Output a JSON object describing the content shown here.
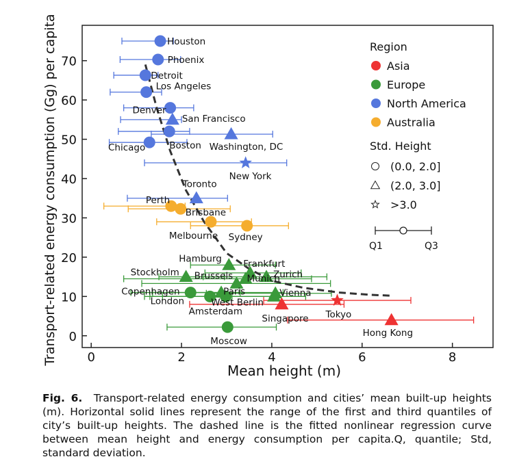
{
  "chart_data": {
    "type": "scatter",
    "xlabel": "Mean height (m)",
    "ylabel": "Transport-related energy consumption (Gg) per capita",
    "xlim": [
      -0.2,
      8.9
    ],
    "ylim": [
      -3,
      79
    ],
    "xticks": [
      "0",
      "2",
      "4",
      "6",
      "8"
    ],
    "yticks": [
      "0",
      "10",
      "20",
      "30",
      "40",
      "50",
      "60",
      "70"
    ],
    "xtick_values": [
      0,
      2,
      4,
      6,
      8
    ],
    "ytick_values": [
      0,
      10,
      20,
      30,
      40,
      50,
      60,
      70
    ],
    "grid": false,
    "legend_placement": "top-right",
    "legend": {
      "region_title": "Region",
      "regions": [
        {
          "name": "Asia",
          "color": "#ee3333"
        },
        {
          "name": "Europe",
          "color": "#3a9a3a"
        },
        {
          "name": "North America",
          "color": "#5577dd"
        },
        {
          "name": "Australia",
          "color": "#f5ad2e"
        }
      ],
      "std_title": "Std. Height",
      "std_items": [
        {
          "shape": "circle",
          "label": "(0.0, 2.0]"
        },
        {
          "shape": "triangle",
          "label": "(2.0, 3.0]"
        },
        {
          "shape": "star",
          "label": ">3.0"
        }
      ],
      "range_labels": [
        "Q1",
        "Q3"
      ]
    },
    "fit_curve": [
      [
        1.2,
        69
      ],
      [
        1.45,
        58
      ],
      [
        1.75,
        47
      ],
      [
        2.1,
        37
      ],
      [
        2.5,
        29
      ],
      [
        3.0,
        21
      ],
      [
        3.5,
        17
      ],
      [
        4.0,
        14
      ],
      [
        4.7,
        12.2
      ],
      [
        5.5,
        11
      ],
      [
        6.2,
        10.4
      ],
      [
        6.65,
        10.2
      ]
    ],
    "points": [
      {
        "city": "Houston",
        "region": "North America",
        "shape": "circle",
        "x": 1.53,
        "y": 75.0,
        "q1": 0.68,
        "q3": 1.82
      },
      {
        "city": "Phoenix",
        "region": "North America",
        "shape": "circle",
        "x": 1.48,
        "y": 70.3,
        "q1": 0.64,
        "q3": 1.98
      },
      {
        "city": "Detroit",
        "region": "North America",
        "shape": "circle",
        "x": 1.2,
        "y": 66.3,
        "q1": 0.5,
        "q3": 1.48
      },
      {
        "city": "Los Angeles",
        "region": "North America",
        "shape": "circle",
        "x": 1.22,
        "y": 62.0,
        "q1": 0.42,
        "q3": 1.56
      },
      {
        "city": "Denver",
        "region": "North America",
        "shape": "circle",
        "x": 1.75,
        "y": 58.0,
        "q1": 0.72,
        "q3": 2.27
      },
      {
        "city": "San Francisco",
        "region": "North America",
        "shape": "triangle",
        "x": 1.8,
        "y": 55.0,
        "q1": 0.65,
        "q3": 2.0
      },
      {
        "city": "Boston",
        "region": "North America",
        "shape": "circle",
        "x": 1.73,
        "y": 52.0,
        "q1": 0.6,
        "q3": 2.18
      },
      {
        "city": "Washington, DC",
        "region": "North America",
        "shape": "triangle",
        "x": 3.1,
        "y": 51.3,
        "q1": 1.33,
        "q3": 4.02
      },
      {
        "city": "Chicago",
        "region": "North America",
        "shape": "circle",
        "x": 1.29,
        "y": 49.2,
        "q1": 0.4,
        "q3": 2.12
      },
      {
        "city": "New York",
        "region": "North America",
        "shape": "star",
        "x": 3.42,
        "y": 44.0,
        "q1": 1.18,
        "q3": 4.33
      },
      {
        "city": "Toronto",
        "region": "North America",
        "shape": "triangle",
        "x": 2.33,
        "y": 35.0,
        "q1": 0.8,
        "q3": 3.02
      },
      {
        "city": "Perth",
        "region": "Australia",
        "shape": "circle",
        "x": 1.77,
        "y": 33.0,
        "q1": 0.28,
        "q3": 2.08
      },
      {
        "city": "Brisbane",
        "region": "Australia",
        "shape": "circle",
        "x": 1.98,
        "y": 32.3,
        "q1": 0.82,
        "q3": 3.08
      },
      {
        "city": "Melbourne",
        "region": "Australia",
        "shape": "circle",
        "x": 2.65,
        "y": 29.0,
        "q1": 1.45,
        "q3": 3.55
      },
      {
        "city": "Sydney",
        "region": "Australia",
        "shape": "circle",
        "x": 3.45,
        "y": 28.0,
        "q1": 2.2,
        "q3": 4.37
      },
      {
        "city": "Hamburg",
        "region": "Europe",
        "shape": "triangle",
        "x": 3.05,
        "y": 18.0,
        "q1": 2.2,
        "q3": 4.08
      },
      {
        "city": "Frankfurt",
        "region": "Europe",
        "shape": "triangle",
        "x": 3.52,
        "y": 16.0,
        "q1": 2.52,
        "q3": 4.65
      },
      {
        "city": "Stockholm",
        "region": "Europe",
        "shape": "triangle",
        "x": 2.1,
        "y": 15.0,
        "q1": 1.5,
        "q3": 2.95
      },
      {
        "city": "Brussels",
        "region": "Europe",
        "shape": "triangle",
        "x": 3.42,
        "y": 14.5,
        "q1": 0.72,
        "q3": 4.88
      },
      {
        "city": "Zurich",
        "region": "Europe",
        "shape": "triangle",
        "x": 3.88,
        "y": 15.0,
        "q1": 2.48,
        "q3": 5.22
      },
      {
        "city": "Munich",
        "region": "Europe",
        "shape": "triangle",
        "x": 3.22,
        "y": 13.3,
        "q1": 1.12,
        "q3": 5.3
      },
      {
        "city": "Copenhagen",
        "region": "Europe",
        "shape": "circle",
        "x": 2.2,
        "y": 11.0,
        "q1": 0.88,
        "q3": 3.3
      },
      {
        "city": "Paris",
        "region": "Europe",
        "shape": "triangle",
        "x": 2.88,
        "y": 11.0,
        "q1": 1.36,
        "q3": 4.25
      },
      {
        "city": "Vienna",
        "region": "Europe",
        "shape": "triangle",
        "x": 4.08,
        "y": 10.8,
        "q1": 2.55,
        "q3": 5.32
      },
      {
        "city": "London",
        "region": "Europe",
        "shape": "circle",
        "x": 2.63,
        "y": 10.0,
        "q1": 1.3,
        "q3": 4.0
      },
      {
        "city": "Amsterdam",
        "region": "Europe",
        "shape": "circle",
        "x": 2.98,
        "y": 10.0,
        "q1": 1.18,
        "q3": 3.12
      },
      {
        "city": "West Berlin",
        "region": "Europe",
        "shape": "triangle",
        "x": 4.05,
        "y": 10.0,
        "q1": 1.58,
        "q3": 4.75
      },
      {
        "city": "Moscow",
        "region": "Europe",
        "shape": "circle",
        "x": 3.02,
        "y": 2.2,
        "q1": 1.68,
        "q3": 4.1
      },
      {
        "city": "Singapore",
        "region": "Asia",
        "shape": "triangle",
        "x": 4.22,
        "y": 8.0,
        "q1": 2.18,
        "q3": 5.6
      },
      {
        "city": "Tokyo",
        "region": "Asia",
        "shape": "star",
        "x": 5.45,
        "y": 9.0,
        "q1": 3.82,
        "q3": 7.08
      },
      {
        "city": "Hong Kong",
        "region": "Asia",
        "shape": "triangle",
        "x": 6.65,
        "y": 4.0,
        "q1": 4.35,
        "q3": 8.47
      }
    ]
  },
  "caption": {
    "label": "Fig. 6.",
    "text": "Transport-related energy consumption and cities’ mean built-up heights (m). Horizontal solid lines represent the range of the first and third quantiles of city’s built-up heights. The dashed line is the fitted nonlinear regression curve between mean height and energy consumption per capita.Q, quantile; Std, standard deviation."
  },
  "colors": {
    "asia": "#ee3333",
    "europe": "#3a9a3a",
    "north_america": "#5577dd",
    "australia": "#f5ad2e"
  }
}
